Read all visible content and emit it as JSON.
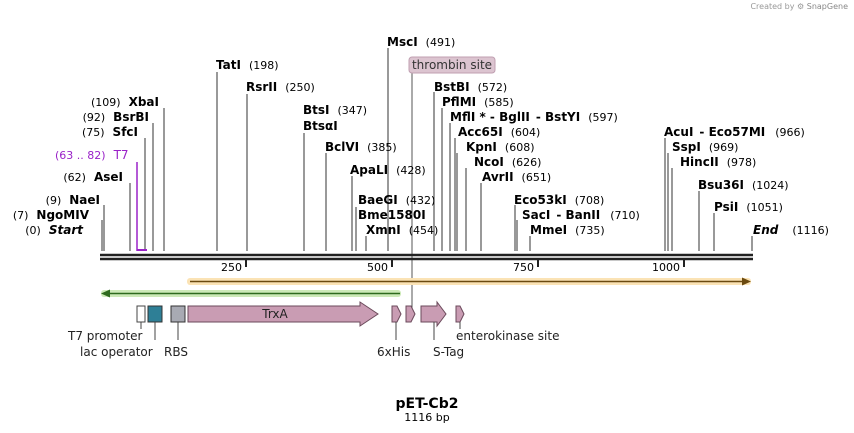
{
  "credit": {
    "prefix": "Created by",
    "brand": "SnapGene"
  },
  "plasmid": {
    "name": "pET-Cb2",
    "length_label": "1116 bp"
  },
  "ruler_ticks": [
    "250",
    "500",
    "750",
    "1000"
  ],
  "sites": [
    {
      "name": "MscI",
      "pos": "(491)"
    },
    {
      "name": "TatI",
      "pos": "(198)"
    },
    {
      "name": "RsrII",
      "pos": "(250)"
    },
    {
      "name": "XbaI",
      "pos": "(109)"
    },
    {
      "name": "BsrBI",
      "pos": "(92)"
    },
    {
      "name": "SfcI",
      "pos": "(75)"
    },
    {
      "name": "BtsI",
      "pos": "(347)"
    },
    {
      "name": "BtsαI",
      "pos": ""
    },
    {
      "name": "BclVI",
      "pos": "(385)"
    },
    {
      "name": "ApaLI",
      "pos": "(428)"
    },
    {
      "name": "AseI",
      "pos": "(62)"
    },
    {
      "name": "NaeI",
      "pos": "(9)"
    },
    {
      "name": "NgoMIV",
      "pos": "(7)"
    },
    {
      "name": "Start",
      "pos": "(0)"
    },
    {
      "name": "BaeGI",
      "pos": "(432)"
    },
    {
      "name": "Bme1580I",
      "pos": ""
    },
    {
      "name": "XmnI",
      "pos": "(454)"
    },
    {
      "name": "BstBI",
      "pos": "(572)"
    },
    {
      "name": "PflMI",
      "pos": "(585)"
    },
    {
      "name": "MflI * - BglII",
      "pos": ""
    },
    {
      "name": "- BstYI",
      "pos": "(597)"
    },
    {
      "name": "Acc65I",
      "pos": "(604)"
    },
    {
      "name": "KpnI",
      "pos": "(608)"
    },
    {
      "name": "NcoI",
      "pos": "(626)"
    },
    {
      "name": "AvrII",
      "pos": "(651)"
    },
    {
      "name": "Eco53kI",
      "pos": "(708)"
    },
    {
      "name": "SacI",
      "pos": ""
    },
    {
      "name": "- BanII",
      "pos": "(710)"
    },
    {
      "name": "MmeI",
      "pos": "(735)"
    },
    {
      "name": "AcuI",
      "pos": ""
    },
    {
      "name": "- Eco57MI",
      "pos": "(966)"
    },
    {
      "name": "SspI",
      "pos": "(969)"
    },
    {
      "name": "HincII",
      "pos": "(978)"
    },
    {
      "name": "Bsu36I",
      "pos": "(1024)"
    },
    {
      "name": "PsiI",
      "pos": "(1051)"
    },
    {
      "name": "End",
      "pos": "(1116)"
    }
  ],
  "t7": {
    "range": "(63 .. 82)",
    "name": "T7"
  },
  "features": {
    "thrombin_site": "thrombin site",
    "trxa": "TrxA",
    "t7_promoter": "T7 promoter",
    "lac_operator": "lac operator",
    "rbs": "RBS",
    "his6": "6xHis",
    "stag": "S-Tag",
    "enterokinase": "enterokinase site"
  },
  "colors": {
    "feature_pink": "#c99cb3",
    "lac_teal": "#2e7f96",
    "rbs_gray": "#a8aab3",
    "green_arrow": "#3a9a2a",
    "orange_arrow": "#e0a030",
    "t7_purple": "#9a22c8"
  }
}
